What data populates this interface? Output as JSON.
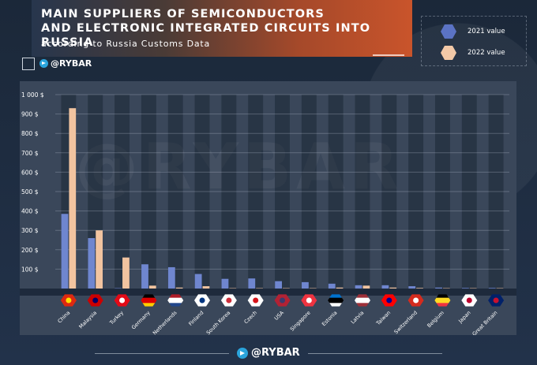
{
  "header": {
    "title": "MAIN SUPPLIERS OF SEMICONDUCTORS\nAND ELECTRONIC INTEGRATED CIRCUITS INTO RUSSIA",
    "subtitle": "according to Russia Customs Data"
  },
  "brand": {
    "top_label": "@RYBAR",
    "bottom_label": "@RYBAR",
    "watermark": "@RYBAR"
  },
  "legend": [
    {
      "label": "2021 value",
      "color": "#5b73c4"
    },
    {
      "label": "2022 value",
      "color": "#f3c9a8"
    }
  ],
  "chart_data": {
    "type": "bar",
    "categories": [
      "China",
      "Malaysia",
      "Turkey",
      "Germany",
      "Netherlands",
      "Finland",
      "South Korea",
      "Czech",
      "USA",
      "Singapore",
      "Estonia",
      "Latvia",
      "Taiwan",
      "Switzerland",
      "Belgium",
      "Japan",
      "Great Britain"
    ],
    "series": [
      {
        "name": "2021 value",
        "color": "#6f86cf",
        "values": [
          385,
          260,
          2,
          125,
          110,
          75,
          50,
          52,
          38,
          33,
          25,
          17,
          17,
          12,
          5,
          3,
          3
        ]
      },
      {
        "name": "2022 value",
        "color": "#f2c4a0",
        "values": [
          930,
          300,
          160,
          15,
          5,
          12,
          2,
          2,
          2,
          2,
          5,
          15,
          5,
          3,
          2,
          2,
          2
        ]
      }
    ],
    "ylim": [
      0,
      1000
    ],
    "yticks": [
      100,
      200,
      300,
      400,
      500,
      600,
      700,
      800,
      900,
      1000
    ],
    "ytick_labels": [
      "100 $",
      "200 $",
      "300 $",
      "400 $",
      "500 $",
      "600 $",
      "700 $",
      "800 $",
      "900 $",
      "1 000 $"
    ],
    "grid": true,
    "legend_position": "top-right"
  },
  "flags": [
    "china-flag-icon",
    "malaysia-flag-icon",
    "turkey-flag-icon",
    "germany-flag-icon",
    "netherlands-flag-icon",
    "finland-flag-icon",
    "south-korea-flag-icon",
    "czech-flag-icon",
    "usa-flag-icon",
    "singapore-flag-icon",
    "estonia-flag-icon",
    "latvia-flag-icon",
    "taiwan-flag-icon",
    "switzerland-flag-icon",
    "belgium-flag-icon",
    "japan-flag-icon",
    "great-britain-flag-icon"
  ]
}
